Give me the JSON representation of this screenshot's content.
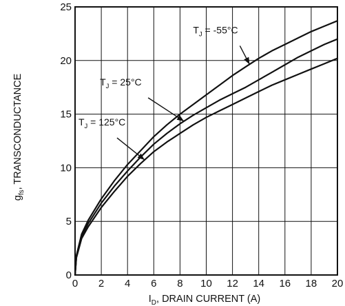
{
  "chart_data": {
    "type": "line",
    "xlabel_main": "I",
    "xlabel_sub": "D",
    "xlabel_rest": ", DRAIN CURRENT (A)",
    "ylabel_main": "g",
    "ylabel_sub": "fs",
    "ylabel_rest": ", TRANSCONDUCTANCE",
    "xlim": [
      0,
      20
    ],
    "ylim": [
      0,
      25
    ],
    "xticks": [
      0,
      2,
      4,
      6,
      8,
      10,
      12,
      14,
      16,
      18,
      20
    ],
    "yticks": [
      0,
      5,
      10,
      15,
      20,
      25
    ],
    "grid": true,
    "colors": {
      "line": "#111111",
      "grid": "#111111",
      "background": "#ffffff"
    },
    "series": [
      {
        "name": "T_J = -55°C",
        "x": [
          0,
          0.1,
          0.5,
          1,
          2,
          3,
          4,
          5,
          6,
          7,
          8,
          9,
          10,
          11,
          12,
          13,
          14,
          15,
          16,
          17,
          18,
          19,
          20
        ],
        "y": [
          0,
          1.8,
          3.8,
          5.1,
          7.1,
          8.8,
          10.3,
          11.6,
          12.9,
          14.0,
          15.0,
          15.9,
          16.8,
          17.7,
          18.6,
          19.4,
          20.2,
          20.9,
          21.5,
          22.1,
          22.7,
          23.2,
          23.7
        ]
      },
      {
        "name": "T_J = 25°C",
        "x": [
          0,
          0.1,
          0.5,
          1,
          2,
          3,
          4,
          5,
          6,
          7,
          8,
          9,
          10,
          11,
          12,
          13,
          14,
          15,
          16,
          17,
          18,
          19,
          20
        ],
        "y": [
          0,
          1.7,
          3.6,
          4.8,
          6.7,
          8.3,
          9.7,
          11.0,
          12.2,
          13.2,
          14.1,
          14.9,
          15.6,
          16.3,
          16.9,
          17.5,
          18.2,
          18.9,
          19.6,
          20.3,
          20.9,
          21.5,
          22.0
        ]
      },
      {
        "name": "T_J = 125°C",
        "x": [
          0,
          0.1,
          0.5,
          1,
          2,
          3,
          4,
          5,
          6,
          7,
          8,
          9,
          10,
          11,
          12,
          13,
          14,
          15,
          16,
          17,
          18,
          19,
          20
        ],
        "y": [
          0,
          1.6,
          3.4,
          4.5,
          6.3,
          7.8,
          9.2,
          10.4,
          11.5,
          12.4,
          13.2,
          14.0,
          14.7,
          15.3,
          15.9,
          16.5,
          17.1,
          17.7,
          18.2,
          18.7,
          19.2,
          19.7,
          20.2
        ]
      }
    ],
    "annotations": [
      {
        "series": 0,
        "main": "T",
        "sub": "J",
        "rest": " = -55°C",
        "at_x": 13.3
      },
      {
        "series": 1,
        "main": "T",
        "sub": "J",
        "rest": " = 25°C",
        "at_x": 8.3
      },
      {
        "series": 2,
        "main": "T",
        "sub": "J",
        "rest": " = 125°C",
        "at_x": 5.3
      }
    ]
  }
}
